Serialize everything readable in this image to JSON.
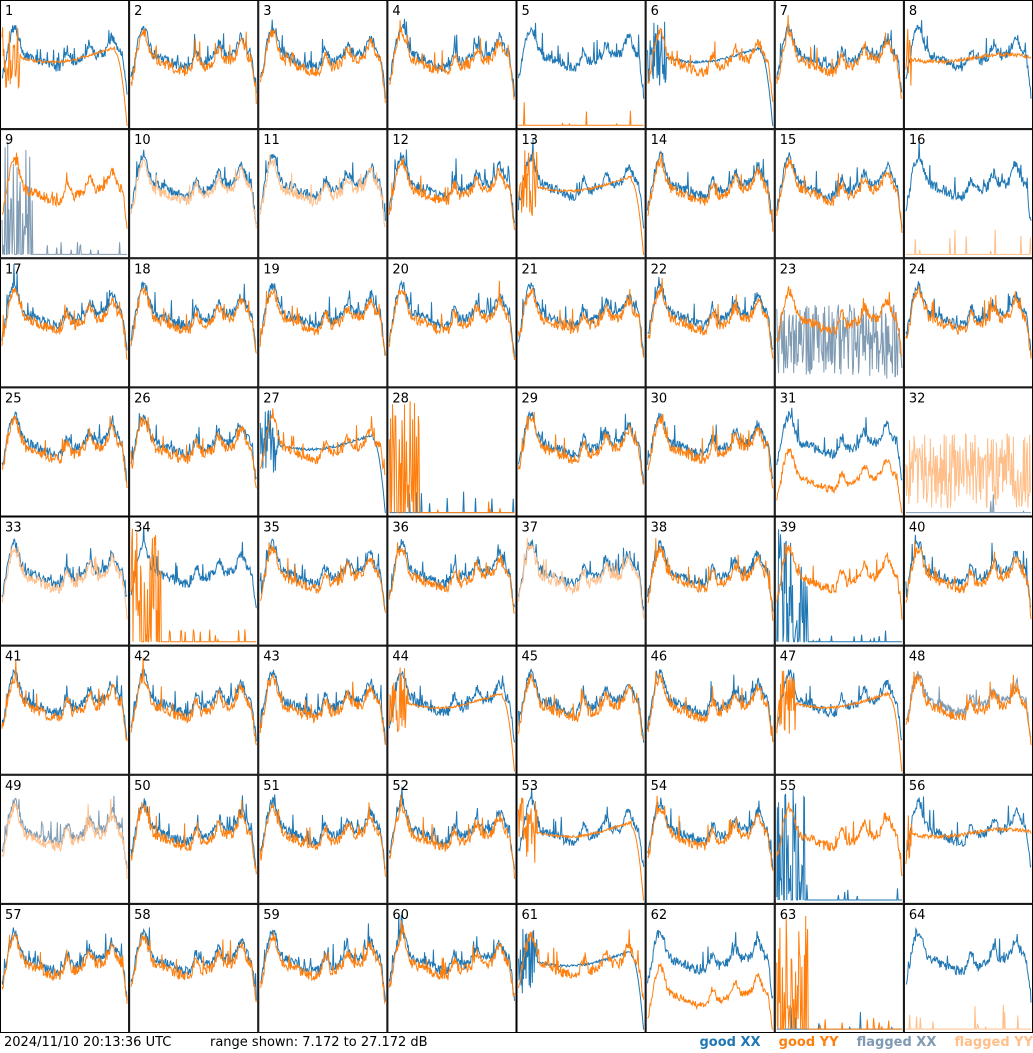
{
  "footer": {
    "timestamp": "2024/11/10 20:13:36 UTC",
    "range_text": "range shown: 7.172 to 27.172 dB"
  },
  "legend": {
    "good_xx": "good XX",
    "good_yy": "good YY",
    "flagged_xx": "flagged XX",
    "flagged_yy": "flagged YY"
  },
  "colors": {
    "good_xx": "#1f77b4",
    "good_yy": "#ff7f0e",
    "flagged_xx": "#7f9bb3",
    "flagged_yy": "#ffbf8a"
  },
  "chart_data": {
    "type": "line",
    "grid": {
      "rows": 8,
      "cols": 8
    },
    "ylim": [
      7.172,
      27.172
    ],
    "unit": "dB",
    "xlabel": "",
    "ylabel": "",
    "panels": [
      {
        "label": "1",
        "xx": "good",
        "yy": "good",
        "yy_shape": "droop"
      },
      {
        "label": "2",
        "xx": "good",
        "yy": "good",
        "yy_shape": "normal"
      },
      {
        "label": "3",
        "xx": "good",
        "yy": "good",
        "yy_shape": "normal"
      },
      {
        "label": "4",
        "xx": "good",
        "yy": "good",
        "yy_shape": "normal"
      },
      {
        "label": "5",
        "xx": "good",
        "yy": "good",
        "yy_shape": "dead"
      },
      {
        "label": "6",
        "xx": "good",
        "yy": "good",
        "xx_shape": "droop",
        "yy_shape": "normal"
      },
      {
        "label": "7",
        "xx": "good",
        "yy": "good",
        "yy_shape": "normal"
      },
      {
        "label": "8",
        "xx": "good",
        "yy": "good",
        "yy_shape": "flatish"
      },
      {
        "label": "9",
        "xx": "flagged",
        "yy": "good",
        "xx_shape": "spikes",
        "yy_shape": "normal"
      },
      {
        "label": "10",
        "xx": "good",
        "yy": "flagged",
        "yy_shape": "normal"
      },
      {
        "label": "11",
        "xx": "good",
        "yy": "flagged",
        "yy_shape": "normal"
      },
      {
        "label": "12",
        "xx": "good",
        "yy": "good",
        "yy_shape": "normal"
      },
      {
        "label": "13",
        "xx": "good",
        "yy": "good",
        "yy_shape": "droop"
      },
      {
        "label": "14",
        "xx": "good",
        "yy": "good",
        "yy_shape": "normal"
      },
      {
        "label": "15",
        "xx": "good",
        "yy": "good",
        "yy_shape": "normal"
      },
      {
        "label": "16",
        "xx": "good",
        "yy": "flagged",
        "yy_shape": "dead"
      },
      {
        "label": "17",
        "xx": "good",
        "yy": "good",
        "yy_shape": "normal"
      },
      {
        "label": "18",
        "xx": "good",
        "yy": "good",
        "yy_shape": "normal"
      },
      {
        "label": "19",
        "xx": "good",
        "yy": "good",
        "yy_shape": "normal"
      },
      {
        "label": "20",
        "xx": "good",
        "yy": "good",
        "yy_shape": "normal"
      },
      {
        "label": "21",
        "xx": "good",
        "yy": "good",
        "yy_shape": "normal"
      },
      {
        "label": "22",
        "xx": "good",
        "yy": "good",
        "yy_shape": "normal"
      },
      {
        "label": "23",
        "xx": "flagged",
        "yy": "good",
        "xx_shape": "noisy",
        "yy_shape": "normal"
      },
      {
        "label": "24",
        "xx": "good",
        "yy": "good",
        "yy_shape": "normal"
      },
      {
        "label": "25",
        "xx": "good",
        "yy": "good",
        "yy_shape": "normal"
      },
      {
        "label": "26",
        "xx": "good",
        "yy": "good",
        "yy_shape": "normal"
      },
      {
        "label": "27",
        "xx": "good",
        "yy": "good",
        "xx_shape": "droop",
        "yy_shape": "normal"
      },
      {
        "label": "28",
        "xx": "good",
        "yy": "good",
        "xx_shape": "dead",
        "yy_shape": "spikes"
      },
      {
        "label": "29",
        "xx": "good",
        "yy": "good",
        "yy_shape": "normal"
      },
      {
        "label": "30",
        "xx": "good",
        "yy": "good",
        "yy_shape": "normal"
      },
      {
        "label": "31",
        "xx": "good",
        "yy": "good",
        "yy_shape": "low"
      },
      {
        "label": "32",
        "xx": "flagged",
        "yy": "flagged",
        "xx_shape": "dead",
        "yy_shape": "noisy"
      },
      {
        "label": "33",
        "xx": "good",
        "yy": "flagged",
        "yy_shape": "normal"
      },
      {
        "label": "34",
        "xx": "good",
        "yy": "good",
        "yy_shape": "spikes"
      },
      {
        "label": "35",
        "xx": "good",
        "yy": "good",
        "yy_shape": "normal"
      },
      {
        "label": "36",
        "xx": "good",
        "yy": "good",
        "yy_shape": "normal"
      },
      {
        "label": "37",
        "xx": "good",
        "yy": "flagged",
        "yy_shape": "normal"
      },
      {
        "label": "38",
        "xx": "good",
        "yy": "good",
        "yy_shape": "normal"
      },
      {
        "label": "39",
        "xx": "good",
        "yy": "good",
        "xx_shape": "spikes",
        "yy_shape": "normal"
      },
      {
        "label": "40",
        "xx": "good",
        "yy": "good",
        "yy_shape": "normal"
      },
      {
        "label": "41",
        "xx": "good",
        "yy": "good",
        "yy_shape": "normal"
      },
      {
        "label": "42",
        "xx": "good",
        "yy": "good",
        "yy_shape": "normal"
      },
      {
        "label": "43",
        "xx": "good",
        "yy": "good",
        "yy_shape": "normal"
      },
      {
        "label": "44",
        "xx": "good",
        "yy": "good",
        "yy_shape": "droop"
      },
      {
        "label": "45",
        "xx": "good",
        "yy": "good",
        "yy_shape": "normal"
      },
      {
        "label": "46",
        "xx": "good",
        "yy": "good",
        "yy_shape": "normal"
      },
      {
        "label": "47",
        "xx": "good",
        "yy": "good",
        "yy_shape": "droop"
      },
      {
        "label": "48",
        "xx": "flagged",
        "yy": "good",
        "yy_shape": "normal"
      },
      {
        "label": "49",
        "xx": "flagged",
        "yy": "flagged",
        "yy_shape": "normal"
      },
      {
        "label": "50",
        "xx": "good",
        "yy": "good",
        "yy_shape": "normal"
      },
      {
        "label": "51",
        "xx": "good",
        "yy": "good",
        "yy_shape": "normal"
      },
      {
        "label": "52",
        "xx": "good",
        "yy": "good",
        "yy_shape": "normal"
      },
      {
        "label": "53",
        "xx": "good",
        "yy": "good",
        "yy_shape": "droop"
      },
      {
        "label": "54",
        "xx": "good",
        "yy": "good",
        "yy_shape": "normal"
      },
      {
        "label": "55",
        "xx": "good",
        "yy": "good",
        "xx_shape": "spikes",
        "yy_shape": "normal"
      },
      {
        "label": "56",
        "xx": "good",
        "yy": "good",
        "yy_shape": "flatish"
      },
      {
        "label": "57",
        "xx": "good",
        "yy": "good",
        "yy_shape": "normal"
      },
      {
        "label": "58",
        "xx": "good",
        "yy": "good",
        "yy_shape": "normal"
      },
      {
        "label": "59",
        "xx": "good",
        "yy": "good",
        "yy_shape": "normal"
      },
      {
        "label": "60",
        "xx": "good",
        "yy": "good",
        "yy_shape": "normal"
      },
      {
        "label": "61",
        "xx": "good",
        "yy": "good",
        "xx_shape": "droop",
        "yy_shape": "normal"
      },
      {
        "label": "62",
        "xx": "good",
        "yy": "good",
        "yy_shape": "low"
      },
      {
        "label": "63",
        "xx": "good",
        "yy": "good",
        "xx_shape": "dead",
        "yy_shape": "spikes"
      },
      {
        "label": "64",
        "xx": "good",
        "yy": "flagged",
        "yy_shape": "dead"
      }
    ]
  }
}
